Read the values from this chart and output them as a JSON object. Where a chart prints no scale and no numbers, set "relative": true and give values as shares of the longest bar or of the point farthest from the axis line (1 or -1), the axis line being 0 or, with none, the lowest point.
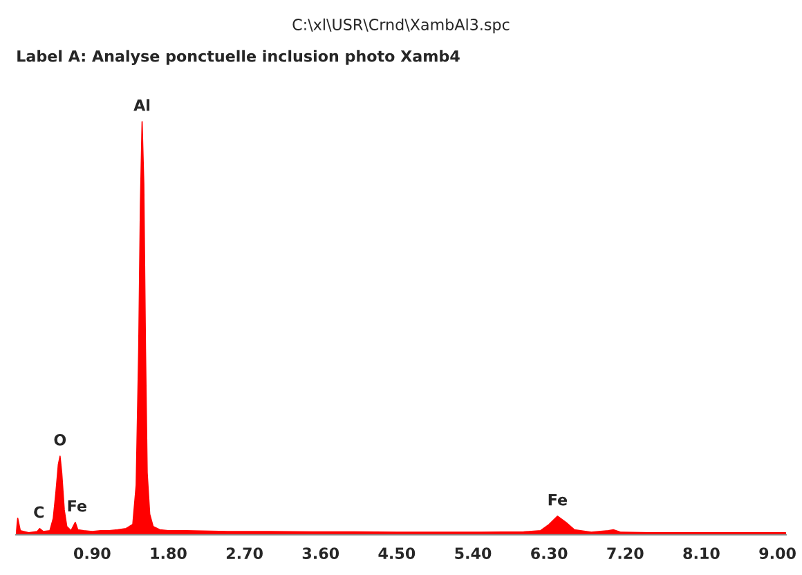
{
  "chart_data": {
    "type": "area",
    "title": "C:\\xl\\USR\\Crnd\\XambAl3.spc",
    "subtitle": "Label A: Analyse ponctuelle inclusion photo Xamb4",
    "relative": true,
    "tick_labels": "x",
    "grid": false,
    "xlim": [
      0,
      9.1
    ],
    "xticks": [
      {
        "value": 0.9,
        "label": "0.90"
      },
      {
        "value": 1.8,
        "label": "1.80"
      },
      {
        "value": 2.7,
        "label": "2.70"
      },
      {
        "value": 3.6,
        "label": "3.60"
      },
      {
        "value": 4.5,
        "label": "4.50"
      },
      {
        "value": 5.4,
        "label": "5.40"
      },
      {
        "value": 6.3,
        "label": "6.30"
      },
      {
        "value": 7.2,
        "label": "7.20"
      },
      {
        "value": 8.1,
        "label": "8.10"
      },
      {
        "value": 9.0,
        "label": "9.00"
      }
    ],
    "series": [
      {
        "color": "#ff0000",
        "x": [
          0.0,
          0.02,
          0.05,
          0.15,
          0.25,
          0.28,
          0.32,
          0.4,
          0.44,
          0.47,
          0.5,
          0.52,
          0.54,
          0.57,
          0.6,
          0.65,
          0.7,
          0.73,
          0.8,
          0.9,
          1.0,
          1.1,
          1.2,
          1.3,
          1.38,
          1.42,
          1.45,
          1.47,
          1.49,
          1.51,
          1.53,
          1.55,
          1.58,
          1.62,
          1.7,
          1.8,
          2.0,
          2.5,
          3.0,
          3.5,
          4.0,
          4.5,
          5.0,
          5.5,
          6.0,
          6.2,
          6.3,
          6.4,
          6.5,
          6.6,
          6.8,
          7.0,
          7.06,
          7.15,
          7.5,
          8.0,
          8.5,
          9.1
        ],
        "values": [
          0.0,
          0.04,
          0.01,
          0.005,
          0.008,
          0.015,
          0.008,
          0.01,
          0.04,
          0.1,
          0.17,
          0.19,
          0.15,
          0.06,
          0.02,
          0.01,
          0.03,
          0.012,
          0.01,
          0.008,
          0.01,
          0.01,
          0.012,
          0.015,
          0.025,
          0.12,
          0.45,
          0.8,
          1.0,
          0.85,
          0.45,
          0.15,
          0.05,
          0.02,
          0.012,
          0.01,
          0.01,
          0.008,
          0.008,
          0.007,
          0.007,
          0.006,
          0.006,
          0.006,
          0.007,
          0.01,
          0.025,
          0.045,
          0.03,
          0.012,
          0.006,
          0.01,
          0.012,
          0.006,
          0.005,
          0.005,
          0.005,
          0.005
        ]
      }
    ],
    "annotations": [
      {
        "text": "Al",
        "x": 1.49,
        "y": 1.0
      },
      {
        "text": "O",
        "x": 0.52,
        "y": 0.19
      },
      {
        "text": "Fe",
        "x": 0.72,
        "y": 0.03
      },
      {
        "text": "C",
        "x": 0.27,
        "y": 0.015
      },
      {
        "text": "Fe",
        "x": 6.4,
        "y": 0.045
      }
    ]
  }
}
